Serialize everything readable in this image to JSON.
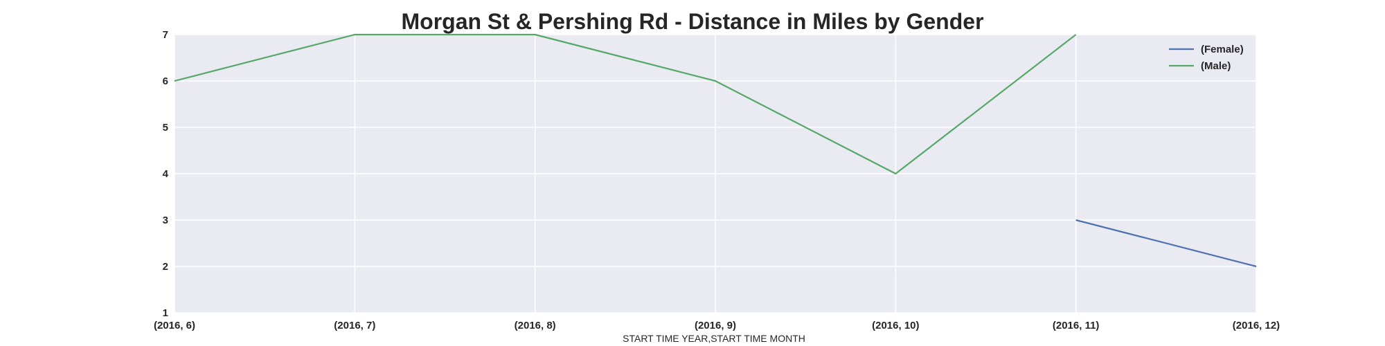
{
  "chart_data": {
    "type": "line",
    "title": "Morgan St & Pershing Rd - Distance in Miles by Gender",
    "xlabel": "START TIME YEAR,START TIME MONTH",
    "ylabel": "",
    "categories": [
      "(2016, 6)",
      "(2016, 7)",
      "(2016, 8)",
      "(2016, 9)",
      "(2016, 10)",
      "(2016, 11)",
      "(2016, 12)"
    ],
    "ylim": [
      1,
      7
    ],
    "yticks": [
      "1",
      "2",
      "3",
      "4",
      "5",
      "6",
      "7"
    ],
    "grid": true,
    "legend_position": "top-right",
    "background_color": "#eaeaf2",
    "series": [
      {
        "name": "(Female)",
        "color": "#4c72b0",
        "values": [
          null,
          null,
          null,
          null,
          null,
          3,
          2
        ]
      },
      {
        "name": "(Male)",
        "color": "#55a868",
        "values": [
          6,
          7,
          7,
          6,
          4,
          7,
          null
        ]
      }
    ]
  }
}
